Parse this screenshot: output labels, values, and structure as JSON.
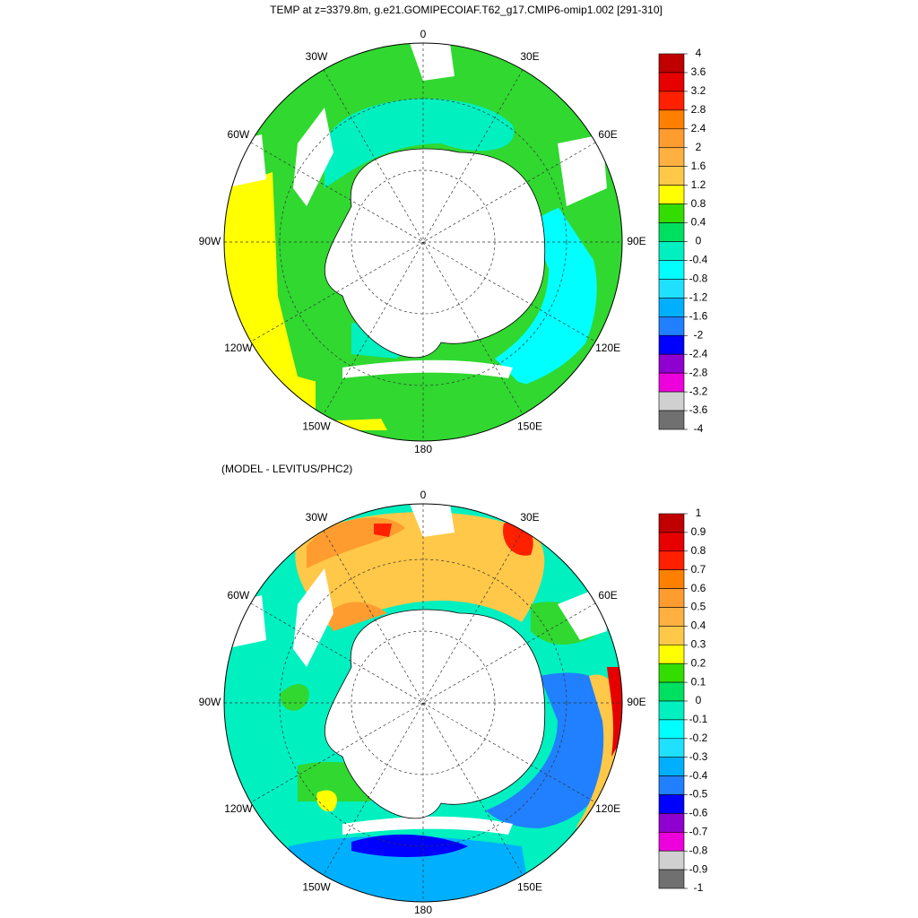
{
  "panels": [
    {
      "title": "TEMP at z=3379.8m, g.e21.GOMIPECOIAF.T62_g17.CMIP6-omip1.002 [291-310]",
      "lon_labels": [
        "0",
        "30E",
        "60E",
        "90E",
        "120E",
        "150E",
        "180",
        "150W",
        "120W",
        "90W",
        "60W",
        "30W"
      ],
      "colorbar": {
        "ticks": [
          4,
          3.6,
          3.2,
          2.8,
          2.4,
          2,
          1.6,
          1.2,
          0.8,
          0.4,
          0,
          -0.4,
          -0.8,
          -1.2,
          -1.6,
          -2,
          -2.4,
          -2.8,
          -3.2,
          -3.6,
          -4
        ],
        "colors": [
          "#c00000",
          "#e60000",
          "#ff2000",
          "#ff8000",
          "#ff9c30",
          "#ffb040",
          "#ffc848",
          "#ffff00",
          "#33dd00",
          "#00e060",
          "#00f0c0",
          "#00ffff",
          "#20e0ff",
          "#00b0ff",
          "#2080ff",
          "#0000ff",
          "#9000d0",
          "#ee00dd",
          "#d0d0d0",
          "#707070"
        ]
      }
    },
    {
      "title": "(MODEL - LEVITUS/PHC2)",
      "lon_labels": [
        "0",
        "30E",
        "60E",
        "90E",
        "120E",
        "150E",
        "180",
        "150W",
        "120W",
        "90W",
        "60W",
        "30W"
      ],
      "colorbar": {
        "ticks": [
          1,
          0.9,
          0.8,
          0.7,
          0.6,
          0.5,
          0.4,
          0.3,
          0.2,
          0.1,
          0,
          -0.1,
          -0.2,
          -0.3,
          -0.4,
          -0.5,
          -0.6,
          -0.7,
          -0.8,
          -0.9,
          -1
        ],
        "colors": [
          "#c00000",
          "#e60000",
          "#ff2000",
          "#ff8000",
          "#ff9c30",
          "#ffb040",
          "#ffc848",
          "#ffff00",
          "#33dd00",
          "#00e060",
          "#00f0c0",
          "#00ffff",
          "#20e0ff",
          "#00b0ff",
          "#2080ff",
          "#0000ff",
          "#9000d0",
          "#ee00dd",
          "#d0d0d0",
          "#707070"
        ]
      }
    }
  ]
}
